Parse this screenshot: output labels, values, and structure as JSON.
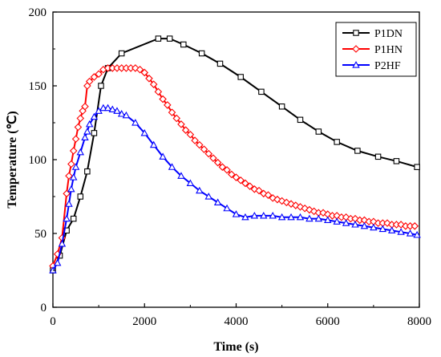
{
  "chart_data": {
    "type": "line",
    "title": "",
    "xlabel": "Time (s)",
    "ylabel": "Temperature (℃)",
    "xlim": [
      0,
      8000
    ],
    "ylim": [
      0,
      200
    ],
    "xticks": [
      0,
      2000,
      4000,
      6000,
      8000
    ],
    "yticks": [
      0,
      50,
      100,
      150,
      200
    ],
    "grid": false,
    "legend_position": "top-right",
    "series": [
      {
        "name": "P1DN",
        "color": "#000000",
        "marker": "square",
        "x": [
          0,
          150,
          300,
          450,
          600,
          750,
          900,
          1050,
          1200,
          1500,
          2300,
          2550,
          2850,
          3250,
          3650,
          4100,
          4550,
          5000,
          5400,
          5800,
          6200,
          6650,
          7100,
          7500,
          7950
        ],
        "y": [
          25,
          35,
          52,
          60,
          75,
          92,
          118,
          150,
          162,
          172,
          182,
          182,
          178,
          172,
          165,
          156,
          146,
          136,
          127,
          119,
          112,
          106,
          102,
          99,
          95
        ]
      },
      {
        "name": "P1HN",
        "color": "#ff0000",
        "marker": "diamond",
        "x": [
          0,
          100,
          200,
          300,
          350,
          400,
          450,
          500,
          550,
          600,
          650,
          700,
          750,
          800,
          900,
          1000,
          1100,
          1200,
          1300,
          1400,
          1500,
          1600,
          1700,
          1800,
          1900,
          2000,
          2100,
          2200,
          2300,
          2400,
          2500,
          2600,
          2700,
          2800,
          2900,
          3000,
          3100,
          3200,
          3300,
          3400,
          3500,
          3600,
          3700,
          3800,
          3900,
          4000,
          4100,
          4200,
          4300,
          4400,
          4500,
          4600,
          4700,
          4800,
          4900,
          5000,
          5100,
          5200,
          5300,
          5400,
          5500,
          5600,
          5700,
          5800,
          5900,
          6000,
          6100,
          6200,
          6300,
          6400,
          6500,
          6600,
          6700,
          6800,
          6900,
          7000,
          7100,
          7200,
          7300,
          7400,
          7500,
          7600,
          7700,
          7800,
          7900
        ],
        "y": [
          28,
          36,
          47,
          77,
          89,
          97,
          106,
          114,
          122,
          128,
          133,
          136,
          150,
          153,
          156,
          158,
          161,
          162,
          162,
          162,
          162,
          162,
          162,
          162,
          161,
          159,
          155,
          151,
          146,
          141,
          137,
          132,
          128,
          124,
          120,
          117,
          113,
          110,
          107,
          104,
          101,
          98,
          95,
          93,
          90,
          88,
          86,
          84,
          82,
          80,
          79,
          77,
          76,
          74,
          73,
          72,
          71,
          70,
          69,
          68,
          67,
          66,
          65,
          64,
          64,
          63,
          62,
          62,
          61,
          61,
          60,
          60,
          59,
          59,
          58,
          58,
          57,
          57,
          57,
          56,
          56,
          56,
          55,
          55,
          55
        ]
      },
      {
        "name": "P2HF",
        "color": "#0000ff",
        "marker": "triangle",
        "x": [
          0,
          100,
          200,
          300,
          350,
          400,
          450,
          500,
          600,
          700,
          750,
          800,
          900,
          1000,
          1100,
          1200,
          1300,
          1400,
          1500,
          1600,
          1800,
          2000,
          2200,
          2400,
          2600,
          2800,
          3000,
          3200,
          3400,
          3600,
          3800,
          4000,
          4200,
          4400,
          4600,
          4800,
          5000,
          5200,
          5400,
          5600,
          5800,
          6000,
          6200,
          6400,
          6600,
          6800,
          7000,
          7200,
          7400,
          7600,
          7800,
          7950
        ],
        "y": [
          25,
          30,
          43,
          60,
          70,
          80,
          88,
          95,
          105,
          115,
          119,
          124,
          129,
          133,
          135,
          135,
          134,
          133,
          131,
          130,
          125,
          118,
          110,
          102,
          95,
          89,
          84,
          79,
          75,
          71,
          67,
          63,
          61,
          62,
          62,
          62,
          61,
          61,
          61,
          60,
          60,
          59,
          58,
          57,
          56,
          55,
          54,
          53,
          52,
          51,
          50,
          49
        ]
      }
    ]
  }
}
